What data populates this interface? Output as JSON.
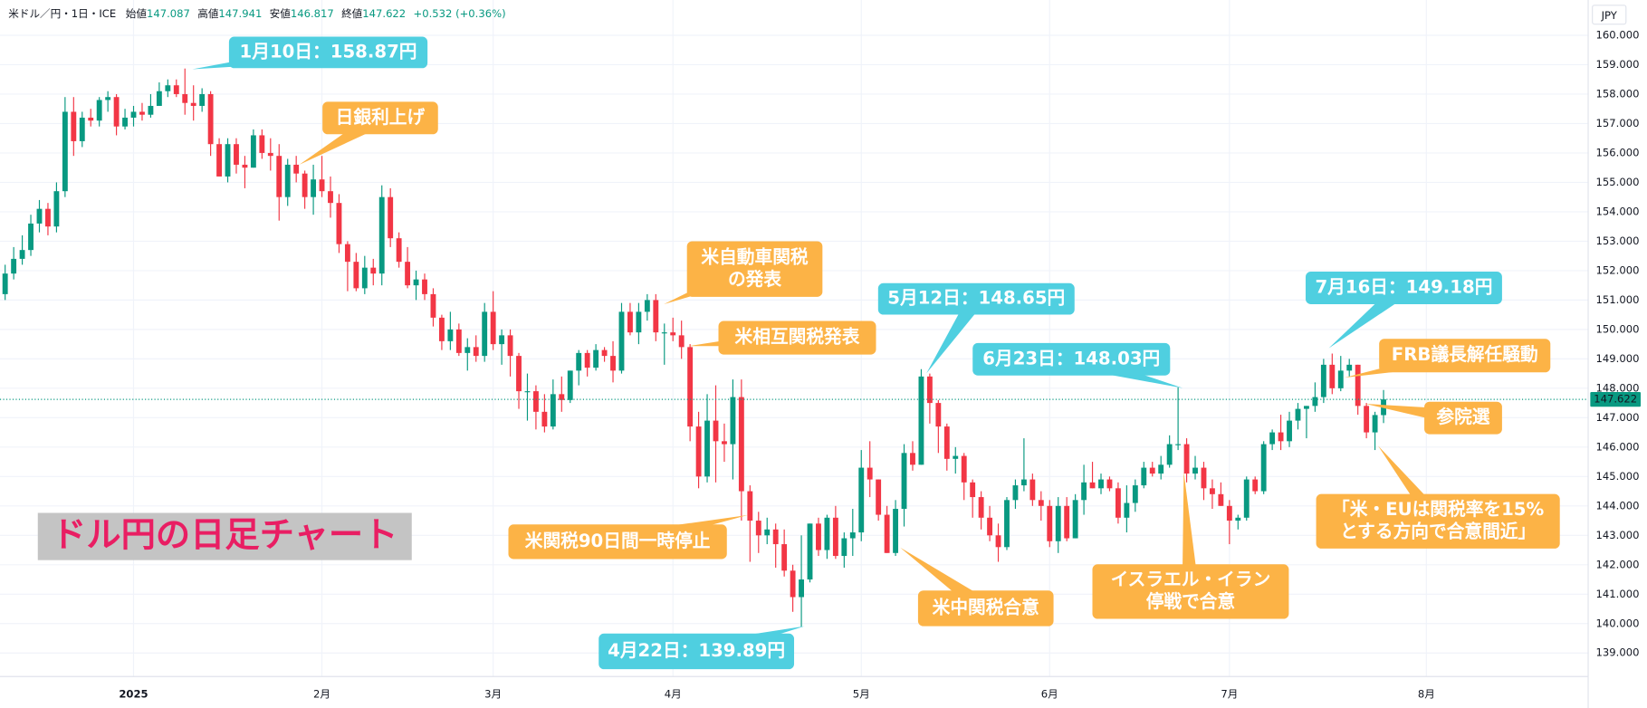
{
  "header": {
    "symbol": "米ドル／円・1日・ICE",
    "open_label": "始値",
    "high_label": "高値",
    "low_label": "安値",
    "close_label": "終値",
    "change": "+0.532 (+0.36%)"
  },
  "chart_data": {
    "type": "candlestick",
    "title": "ドル円の日足チャート",
    "currency": "JPY",
    "up_color": "#089981",
    "down_color": "#f23645",
    "grid": true,
    "ylim": [
      138.2,
      161.2
    ],
    "yticks": [
      {
        "value": 139,
        "label": "139.000"
      },
      {
        "value": 140,
        "label": "140.000"
      },
      {
        "value": 141,
        "label": "141.000"
      },
      {
        "value": 142,
        "label": "142.000"
      },
      {
        "value": 143,
        "label": "143.000"
      },
      {
        "value": 144,
        "label": "144.000"
      },
      {
        "value": 145,
        "label": "145.000"
      },
      {
        "value": 146,
        "label": "146.000"
      },
      {
        "value": 147,
        "label": "147.000"
      },
      {
        "value": 148,
        "label": "148.000"
      },
      {
        "value": 149,
        "label": "149.000"
      },
      {
        "value": 150,
        "label": "150.000"
      },
      {
        "value": 151,
        "label": "151.000"
      },
      {
        "value": 152,
        "label": "152.000"
      },
      {
        "value": 153,
        "label": "153.000"
      },
      {
        "value": 154,
        "label": "154.000"
      },
      {
        "value": 155,
        "label": "155.000"
      },
      {
        "value": 156,
        "label": "156.000"
      },
      {
        "value": 157,
        "label": "157.000"
      },
      {
        "value": 158,
        "label": "158.000"
      },
      {
        "value": 159,
        "label": "159.000"
      },
      {
        "value": 160,
        "label": "160.000"
      }
    ],
    "xlim": [
      -0.6,
      184.9
    ],
    "xticks": [
      {
        "value": 15,
        "label": "2025"
      },
      {
        "value": 37,
        "label": "2月"
      },
      {
        "value": 57,
        "label": "3月"
      },
      {
        "value": 78,
        "label": "4月"
      },
      {
        "value": 100,
        "label": "5月"
      },
      {
        "value": 122,
        "label": "6月"
      },
      {
        "value": 143,
        "label": "7月"
      },
      {
        "value": 166,
        "label": "8月"
      }
    ],
    "open": [
      151.2,
      151.9,
      152.4,
      152.7,
      153.6,
      154.1,
      153.5,
      154.7,
      157.4,
      156.4,
      157.2,
      157.1,
      157.8,
      157.9,
      156.9,
      157.2,
      157.4,
      157.3,
      157.6,
      158.1,
      158.3,
      158.0,
      157.7,
      157.6,
      158.0,
      156.3,
      155.2,
      156.3,
      155.6,
      155.5,
      156.6,
      156.0,
      155.9,
      154.5,
      155.6,
      155.3,
      154.5,
      155.1,
      154.7,
      154.3,
      152.9,
      152.3,
      151.4,
      152.1,
      151.9,
      154.5,
      153.1,
      152.3,
      151.5,
      151.7,
      151.2,
      150.4,
      149.6,
      150.0,
      149.2,
      149.4,
      149.1,
      150.6,
      149.5,
      149.8,
      149.1,
      147.9,
      147.9,
      147.2,
      146.7,
      147.8,
      147.6,
      148.6,
      149.2,
      148.7,
      149.3,
      149.1,
      148.6,
      150.6,
      149.9,
      150.6,
      151.0,
      149.9,
      149.9,
      149.8,
      149.4,
      146.7,
      145.0,
      146.9,
      146.2,
      146.1,
      147.7,
      144.5,
      143.5,
      143.0,
      143.2,
      142.7,
      141.8,
      140.9,
      141.5,
      143.4,
      142.5,
      143.6,
      142.3,
      142.9,
      143.1,
      145.3,
      144.9,
      143.7,
      142.4,
      143.9,
      145.8,
      145.4,
      148.4,
      147.5,
      146.7,
      145.6,
      145.7,
      144.8,
      144.3,
      143.6,
      143.0,
      142.6,
      144.2,
      144.7,
      144.9,
      144.2,
      144.0,
      142.8,
      144.0,
      142.9,
      144.2,
      144.8,
      144.6,
      144.9,
      144.6,
      143.6,
      144.1,
      144.7,
      145.3,
      145.1,
      145.4,
      146.1,
      146.1,
      145.1,
      145.3,
      144.6,
      144.4,
      144.0,
      143.5,
      143.6,
      144.9,
      144.5,
      146.1,
      146.5,
      146.2,
      146.9,
      147.3,
      147.4,
      147.7,
      148.8,
      148.0,
      148.6,
      148.8,
      147.4,
      146.5,
      147.087
    ],
    "high": [
      152.2,
      152.8,
      153.2,
      153.9,
      154.4,
      154.3,
      155.0,
      157.9,
      157.9,
      157.4,
      157.5,
      157.9,
      158.1,
      158.0,
      157.5,
      157.6,
      157.7,
      158.0,
      158.4,
      158.5,
      158.5,
      158.87,
      158.3,
      158.2,
      158.1,
      156.5,
      156.5,
      156.5,
      155.9,
      156.8,
      156.8,
      156.5,
      156.3,
      155.8,
      155.9,
      155.4,
      155.6,
      155.9,
      155.2,
      154.6,
      153.0,
      152.6,
      152.5,
      152.4,
      154.9,
      154.8,
      153.3,
      152.8,
      152.0,
      151.9,
      151.4,
      150.5,
      150.6,
      150.2,
      149.7,
      149.8,
      150.9,
      151.3,
      150.0,
      150.0,
      149.2,
      148.5,
      148.1,
      147.8,
      148.3,
      148.4,
      148.6,
      149.3,
      149.3,
      149.5,
      149.4,
      149.6,
      150.9,
      150.9,
      150.9,
      151.2,
      151.2,
      150.2,
      150.4,
      150.3,
      149.5,
      147.2,
      147.8,
      148.1,
      146.8,
      148.3,
      148.3,
      144.7,
      143.8,
      143.6,
      143.4,
      143.2,
      142.0,
      143.0,
      143.4,
      143.6,
      143.7,
      144.0,
      143.1,
      143.9,
      145.9,
      146.2,
      144.9,
      144.0,
      144.2,
      146.1,
      146.2,
      148.65,
      148.5,
      147.6,
      146.8,
      146.0,
      145.8,
      144.9,
      144.5,
      144.0,
      143.4,
      144.3,
      144.9,
      146.3,
      145.1,
      144.5,
      144.2,
      144.3,
      144.3,
      144.4,
      145.4,
      145.5,
      145.1,
      145.0,
      144.8,
      144.7,
      144.9,
      145.5,
      145.5,
      145.7,
      146.4,
      148.03,
      146.3,
      145.7,
      145.5,
      144.9,
      144.8,
      144.2,
      143.7,
      145.0,
      145.0,
      146.2,
      146.6,
      147.1,
      147.2,
      147.5,
      147.4,
      148.2,
      149.0,
      149.18,
      149.1,
      149.0,
      148.8,
      147.5,
      147.2,
      147.941
    ],
    "low": [
      151.0,
      151.7,
      152.2,
      152.5,
      153.3,
      153.2,
      153.3,
      154.5,
      155.9,
      156.2,
      156.9,
      156.9,
      157.4,
      156.6,
      156.8,
      156.9,
      157.1,
      157.2,
      157.6,
      157.9,
      157.9,
      157.3,
      157.1,
      157.4,
      155.9,
      155.2,
      155.0,
      155.3,
      154.8,
      155.5,
      155.8,
      155.4,
      153.7,
      154.2,
      155.0,
      154.1,
      153.9,
      154.5,
      153.8,
      152.6,
      151.3,
      151.3,
      151.2,
      151.5,
      151.5,
      152.8,
      152.1,
      151.4,
      151.0,
      151.0,
      150.1,
      149.3,
      149.3,
      149.1,
      148.6,
      148.9,
      148.9,
      149.3,
      148.8,
      148.4,
      147.3,
      146.9,
      146.6,
      146.5,
      146.6,
      147.2,
      147.5,
      148.1,
      148.4,
      148.6,
      148.9,
      148.2,
      148.5,
      149.8,
      149.5,
      150.3,
      149.6,
      148.8,
      149.6,
      149.0,
      146.2,
      144.6,
      144.8,
      144.8,
      145.5,
      144.9,
      143.5,
      142.1,
      142.4,
      142.7,
      141.9,
      141.6,
      140.4,
      139.89,
      141.4,
      142.3,
      142.2,
      142.2,
      141.9,
      142.3,
      142.8,
      144.3,
      143.5,
      142.4,
      142.3,
      143.3,
      145.2,
      145.4,
      146.8,
      145.8,
      145.2,
      145.1,
      144.2,
      143.6,
      143.2,
      142.8,
      142.1,
      142.5,
      143.9,
      144.5,
      144.0,
      143.5,
      142.6,
      142.4,
      142.8,
      142.9,
      143.7,
      144.6,
      144.4,
      144.5,
      143.4,
      143.1,
      143.8,
      144.6,
      145.0,
      144.9,
      145.3,
      145.9,
      144.8,
      144.9,
      144.2,
      143.9,
      144.0,
      142.7,
      143.2,
      143.5,
      144.4,
      144.4,
      145.9,
      145.9,
      146.0,
      146.6,
      146.3,
      147.2,
      147.5,
      147.8,
      147.9,
      148.4,
      147.1,
      146.3,
      145.9,
      146.817
    ],
    "close": [
      151.9,
      152.4,
      152.7,
      153.6,
      154.1,
      153.5,
      154.7,
      157.4,
      156.4,
      157.2,
      157.1,
      157.8,
      157.9,
      156.9,
      157.2,
      157.4,
      157.3,
      157.6,
      158.1,
      158.3,
      158.0,
      157.7,
      157.6,
      158.0,
      156.3,
      155.2,
      156.3,
      155.6,
      155.5,
      156.6,
      156.0,
      155.9,
      154.5,
      155.6,
      155.3,
      154.5,
      155.1,
      154.7,
      154.3,
      152.9,
      152.3,
      151.4,
      152.1,
      151.9,
      154.5,
      153.1,
      152.3,
      151.5,
      151.7,
      151.2,
      150.4,
      149.6,
      150.0,
      149.2,
      149.4,
      149.1,
      150.6,
      149.5,
      149.8,
      149.1,
      147.9,
      147.9,
      147.2,
      146.7,
      147.8,
      147.6,
      148.6,
      149.2,
      148.7,
      149.3,
      149.1,
      148.6,
      150.6,
      149.9,
      150.6,
      151.0,
      149.9,
      149.9,
      149.8,
      149.4,
      146.7,
      145.0,
      146.9,
      146.2,
      146.1,
      147.7,
      144.5,
      143.5,
      143.0,
      143.2,
      142.7,
      141.8,
      140.9,
      141.5,
      143.4,
      142.5,
      143.6,
      142.3,
      142.9,
      143.1,
      145.3,
      144.9,
      143.7,
      142.4,
      143.9,
      145.8,
      145.4,
      148.4,
      147.5,
      146.7,
      145.6,
      145.7,
      144.8,
      144.3,
      143.6,
      143.0,
      142.6,
      144.2,
      144.7,
      144.9,
      144.2,
      144.0,
      142.8,
      144.0,
      142.9,
      144.2,
      144.8,
      144.6,
      144.9,
      144.6,
      143.6,
      144.1,
      144.7,
      145.3,
      145.1,
      145.4,
      146.1,
      146.1,
      145.1,
      145.3,
      144.6,
      144.4,
      144.0,
      143.5,
      143.6,
      144.9,
      144.5,
      146.1,
      146.5,
      146.2,
      146.9,
      147.3,
      147.4,
      147.7,
      148.8,
      148.0,
      148.6,
      148.8,
      147.4,
      146.5,
      147.09,
      147.622
    ],
    "annotations": [
      {
        "lines": [
          "1月10日：158.87円"
        ],
        "color": "#4fcfe0"
      },
      {
        "lines": [
          "日銀利上げ"
        ],
        "color": "#fcb346"
      },
      {
        "lines": [
          "米自動車関税",
          "の発表"
        ],
        "color": "#fcb346"
      },
      {
        "lines": [
          "米相互関税発表"
        ],
        "color": "#fcb346"
      },
      {
        "lines": [
          "5月12日：148.65円"
        ],
        "color": "#4fcfe0"
      },
      {
        "lines": [
          "6月23日：148.03円"
        ],
        "color": "#4fcfe0"
      },
      {
        "lines": [
          "7月16日：149.18円"
        ],
        "color": "#4fcfe0"
      },
      {
        "lines": [
          "FRB議長解任騒動"
        ],
        "color": "#fcb346"
      },
      {
        "lines": [
          "参院選"
        ],
        "color": "#fcb346"
      },
      {
        "lines": [
          "「米・EUは関税率を15%",
          "とする方向で合意間近」"
        ],
        "color": "#fcb346"
      },
      {
        "lines": [
          "米関税90日間一時停止"
        ],
        "color": "#fcb346"
      },
      {
        "lines": [
          "イスラエル・イラン",
          "停戦で合意"
        ],
        "color": "#fcb346"
      },
      {
        "lines": [
          "米中関税合意"
        ],
        "color": "#fcb346"
      },
      {
        "lines": [
          "4月22日：139.89円"
        ],
        "color": "#4fcfe0"
      }
    ]
  }
}
